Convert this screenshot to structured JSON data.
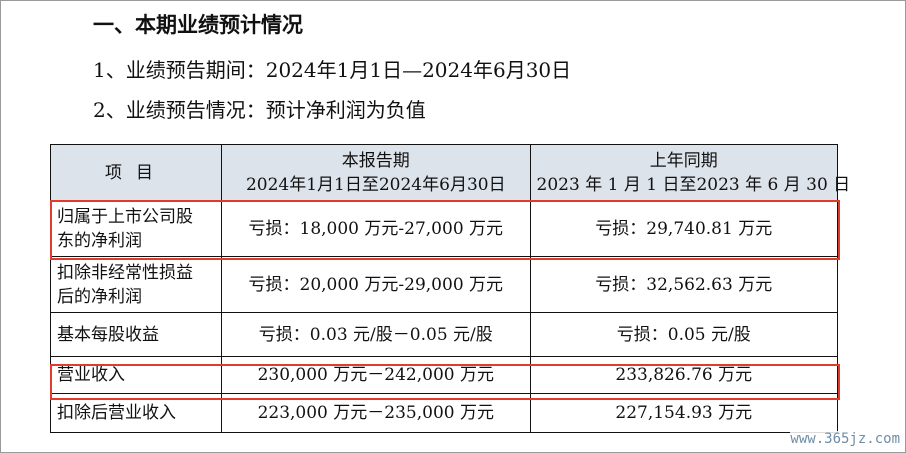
{
  "heading": "一、本期业绩预计情况",
  "items": [
    "1、业绩预告期间：2024年1月1日—2024年6月30日",
    "2、业绩预告情况：预计净利润为负值"
  ],
  "table": {
    "header": {
      "col1": "项目",
      "col2_line1": "本报告期",
      "col2_line2": "2024年1月1日至2024年6月30日",
      "col3_line1": "上年同期",
      "col3_line2": "2023 年 1 月 1 日至2023 年 6 月 30 日"
    },
    "rows": [
      {
        "label_line1": "归属于上市公司股",
        "label_line2": "东的净利润",
        "current": "亏损：18,000 万元-27,000 万元",
        "prior": "亏损：29,740.81 万元"
      },
      {
        "label_line1": "扣除非经常性损益",
        "label_line2": "后的净利润",
        "current": "亏损：20,000 万元-29,000 万元",
        "prior": "亏损：32,562.63 万元"
      },
      {
        "label_line1": "基本每股收益",
        "current": "亏损：0.03 元/股－0.05 元/股",
        "prior": "亏损：0.05 元/股"
      },
      {
        "label_line1": "营业收入",
        "current": "230,000 万元－242,000 万元",
        "prior": "233,826.76 万元"
      },
      {
        "label_line1": "扣除后营业收入",
        "current": "223,000 万元－235,000 万元",
        "prior": "227,154.93 万元"
      }
    ]
  },
  "highlight_color": "#e23a2b",
  "header_bg_color": "#dde3ea",
  "watermark": "www.365jz.com"
}
